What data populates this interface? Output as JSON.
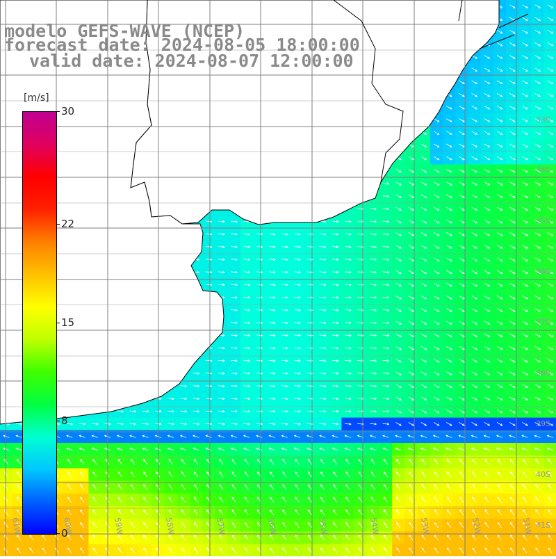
{
  "title": {
    "model": "modelo GEFS-WAVE (NCEP)",
    "forecast": "forecast date: 2024-08-05 18:00:00",
    "valid": "valid date: 2024-08-07 12:00:00"
  },
  "colorbar": {
    "units": "[m/s]",
    "ticks": [
      "30",
      "22",
      "15",
      "8",
      "0"
    ],
    "tick_values": [
      30,
      22,
      15,
      8,
      0
    ],
    "range": [
      0,
      30
    ],
    "colors": [
      "#0000ff",
      "#00a0ff",
      "#00ffff",
      "#00ff00",
      "#ffff00",
      "#ff8000",
      "#ff0000",
      "#c00080"
    ]
  },
  "map": {
    "lon_labels": [
      "61W",
      "60W",
      "59W",
      "58W",
      "57W",
      "56W",
      "55W",
      "54W",
      "53W",
      "52W",
      "51W"
    ],
    "lat_labels": [
      "33S",
      "34S",
      "35S",
      "36S",
      "37S",
      "38S",
      "39S",
      "40S",
      "41S"
    ],
    "lon_range": [
      -61.2,
      -50.4
    ],
    "lat_range": [
      -41.2,
      -30.3
    ],
    "land_color": "#ffffff",
    "grid_color": "#7f7f7f",
    "arrow_color": "#ffffff"
  }
}
